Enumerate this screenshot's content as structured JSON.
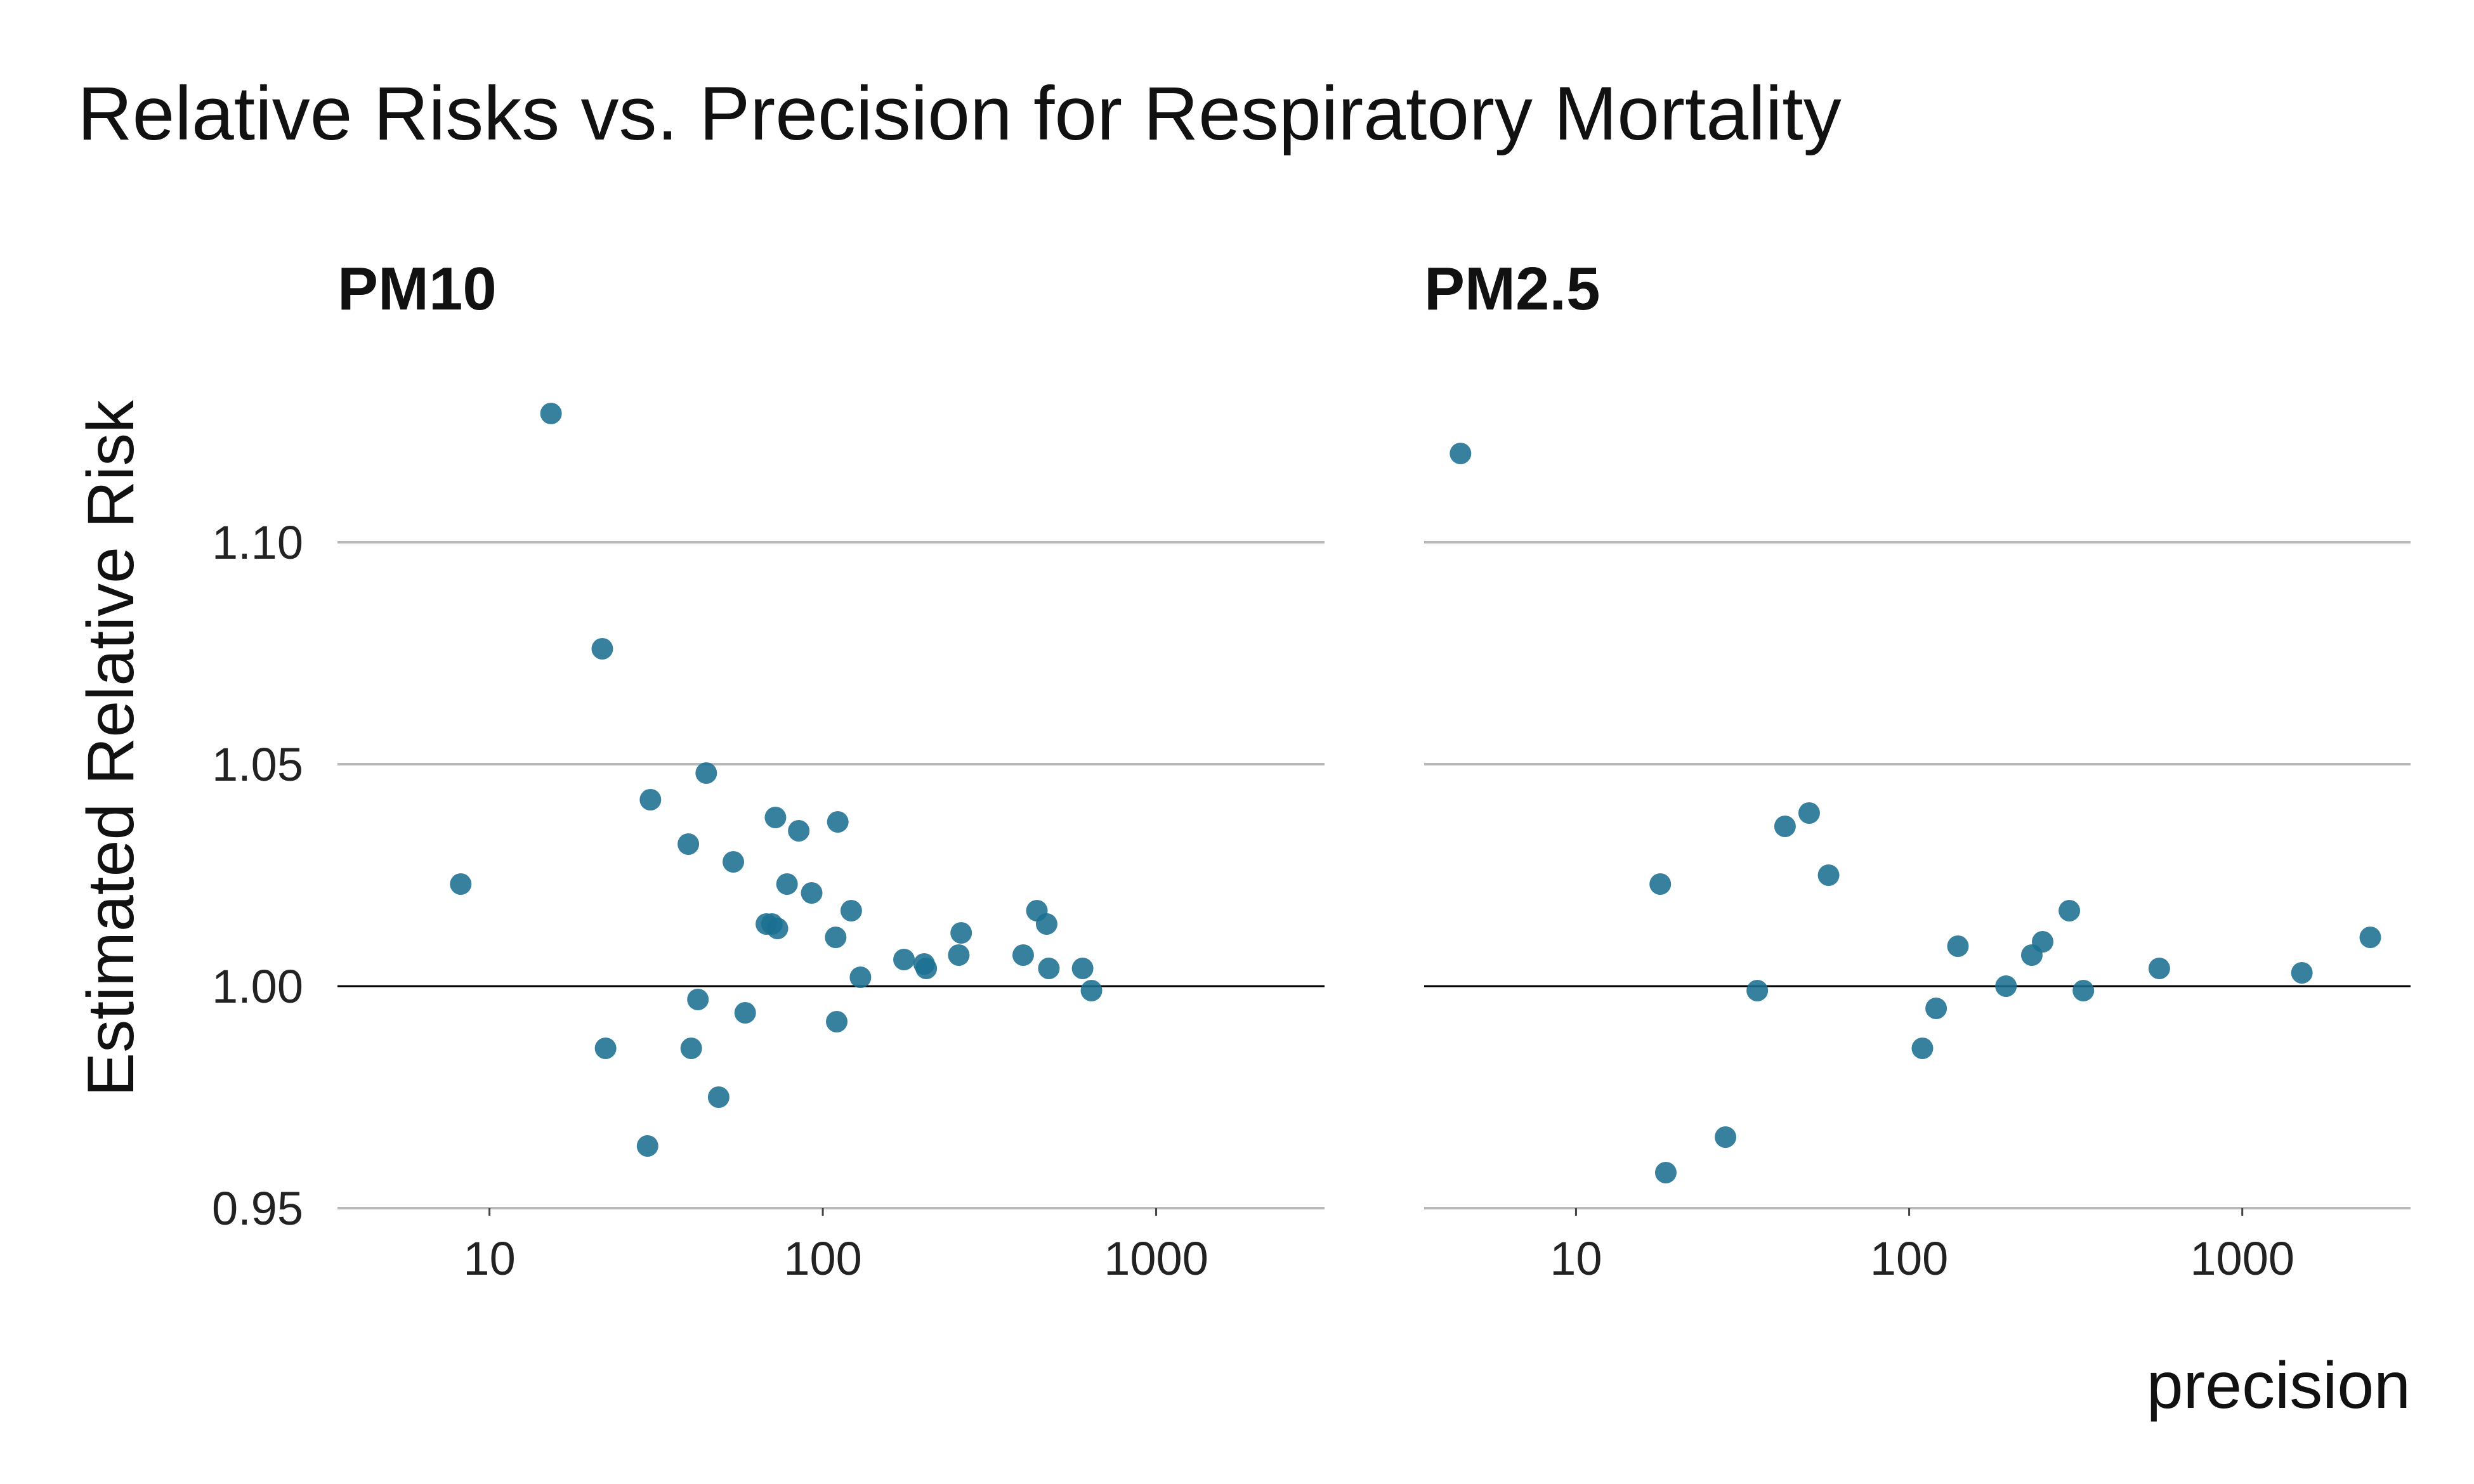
{
  "chart_data": {
    "type": "scatter",
    "title": "Relative Risks vs. Precision for Respiratory Mortality",
    "xlabel": "precision",
    "ylabel": "Estimated Relative Risk",
    "x_scale": "log10",
    "xlim": [
      3.5,
      3200
    ],
    "ylim": [
      0.95,
      1.14
    ],
    "yticks": [
      0.95,
      1.0,
      1.05,
      1.1
    ],
    "ytick_labels": [
      "0.95",
      "1.00",
      "1.05",
      "1.10"
    ],
    "xticks": [
      10,
      100,
      1000
    ],
    "xtick_labels": [
      "10",
      "100",
      "1000"
    ],
    "reference_line_y": 1.0,
    "grid": "horizontal",
    "point_color": "#1b7092",
    "panels": [
      {
        "name": "PM10",
        "points": [
          {
            "x": 8.2,
            "y": 1.023
          },
          {
            "x": 15.3,
            "y": 1.129
          },
          {
            "x": 21.8,
            "y": 1.076
          },
          {
            "x": 22.3,
            "y": 0.986
          },
          {
            "x": 29.8,
            "y": 0.964
          },
          {
            "x": 30.4,
            "y": 1.042
          },
          {
            "x": 39.5,
            "y": 1.032
          },
          {
            "x": 40.3,
            "y": 0.986
          },
          {
            "x": 42.2,
            "y": 0.997
          },
          {
            "x": 44.7,
            "y": 1.048
          },
          {
            "x": 48.7,
            "y": 0.975
          },
          {
            "x": 53.9,
            "y": 1.028
          },
          {
            "x": 58.5,
            "y": 0.994
          },
          {
            "x": 67.7,
            "y": 1.014
          },
          {
            "x": 70.4,
            "y": 1.014
          },
          {
            "x": 72.1,
            "y": 1.038
          },
          {
            "x": 73.1,
            "y": 1.013
          },
          {
            "x": 78.1,
            "y": 1.023
          },
          {
            "x": 84.7,
            "y": 1.035
          },
          {
            "x": 92.6,
            "y": 1.021
          },
          {
            "x": 109.3,
            "y": 1.011
          },
          {
            "x": 110.1,
            "y": 0.992
          },
          {
            "x": 110.9,
            "y": 1.037
          },
          {
            "x": 121.7,
            "y": 1.017
          },
          {
            "x": 129.7,
            "y": 1.002
          },
          {
            "x": 175.2,
            "y": 1.006
          },
          {
            "x": 201.4,
            "y": 1.005
          },
          {
            "x": 204.3,
            "y": 1.004
          },
          {
            "x": 255.8,
            "y": 1.007
          },
          {
            "x": 260.1,
            "y": 1.012
          },
          {
            "x": 399.1,
            "y": 1.007
          },
          {
            "x": 438.8,
            "y": 1.017
          },
          {
            "x": 469.3,
            "y": 1.014
          },
          {
            "x": 476.6,
            "y": 1.004
          },
          {
            "x": 601.7,
            "y": 1.004
          },
          {
            "x": 639.6,
            "y": 0.999
          }
        ]
      },
      {
        "name": "PM2.5",
        "points": [
          {
            "x": 4.5,
            "y": 1.12
          },
          {
            "x": 17.9,
            "y": 1.023
          },
          {
            "x": 18.6,
            "y": 0.958
          },
          {
            "x": 28.1,
            "y": 0.966
          },
          {
            "x": 35.0,
            "y": 0.999
          },
          {
            "x": 42.4,
            "y": 1.036
          },
          {
            "x": 50.1,
            "y": 1.039
          },
          {
            "x": 57.3,
            "y": 1.025
          },
          {
            "x": 109.6,
            "y": 0.986
          },
          {
            "x": 120.5,
            "y": 0.995
          },
          {
            "x": 140.1,
            "y": 1.009
          },
          {
            "x": 195.3,
            "y": 1.0
          },
          {
            "x": 233.5,
            "y": 1.007
          },
          {
            "x": 251.6,
            "y": 1.01
          },
          {
            "x": 302.6,
            "y": 1.017
          },
          {
            "x": 333.4,
            "y": 0.999
          },
          {
            "x": 563.5,
            "y": 1.004
          },
          {
            "x": 1509.9,
            "y": 1.003
          },
          {
            "x": 2422.2,
            "y": 1.011
          }
        ]
      }
    ]
  }
}
